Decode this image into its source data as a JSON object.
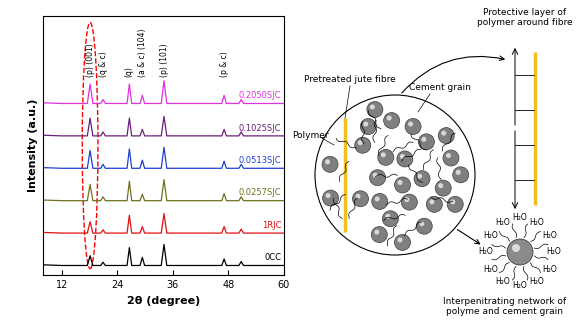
{
  "chart_data": {
    "type": "line",
    "xlabel": "2θ (degree)",
    "ylabel": "Intensity (a.u.)",
    "x": [
      8,
      12,
      16,
      17.5,
      18.1,
      18.7,
      20.4,
      20.9,
      21.4,
      25,
      26.1,
      26.6,
      27.1,
      28.9,
      29.4,
      29.9,
      33.5,
      34.1,
      34.7,
      38,
      46.6,
      47.1,
      47.6,
      50.3,
      50.8,
      51.3,
      55,
      60
    ],
    "xlim": [
      8,
      60
    ],
    "xticks": [
      12,
      24,
      36,
      48,
      60
    ],
    "ylim": [
      0,
      8
    ],
    "yticks": [],
    "tick_labels": "x",
    "series": [
      {
        "name": "0CC",
        "color": "#000000",
        "values": [
          0.32,
          0.3,
          0.3,
          0.3,
          0.6,
          0.3,
          0.3,
          0.4,
          0.3,
          0.3,
          0.3,
          0.85,
          0.3,
          0.3,
          0.55,
          0.3,
          0.3,
          0.95,
          0.3,
          0.3,
          0.3,
          0.5,
          0.3,
          0.3,
          0.42,
          0.3,
          0.3,
          0.3
        ]
      },
      {
        "name": "1RJC",
        "color": "#e01010",
        "values": [
          1.32,
          1.3,
          1.3,
          1.3,
          1.65,
          1.3,
          1.3,
          1.4,
          1.3,
          1.3,
          1.3,
          1.85,
          1.3,
          1.3,
          1.5,
          1.3,
          1.3,
          1.9,
          1.3,
          1.3,
          1.3,
          1.5,
          1.3,
          1.3,
          1.42,
          1.3,
          1.3,
          1.3
        ]
      },
      {
        "name": "0.0257SJC",
        "color": "#707020",
        "values": [
          2.32,
          2.3,
          2.3,
          2.3,
          2.8,
          2.3,
          2.3,
          2.42,
          2.3,
          2.3,
          2.3,
          2.9,
          2.3,
          2.3,
          2.5,
          2.3,
          2.3,
          2.95,
          2.3,
          2.3,
          2.3,
          2.52,
          2.3,
          2.3,
          2.42,
          2.3,
          2.3,
          2.3
        ]
      },
      {
        "name": "0.0513SJC",
        "color": "#1f3fd0",
        "values": [
          3.32,
          3.3,
          3.3,
          3.3,
          3.85,
          3.3,
          3.3,
          3.42,
          3.3,
          3.3,
          3.3,
          3.9,
          3.3,
          3.3,
          3.55,
          3.3,
          3.3,
          3.95,
          3.3,
          3.3,
          3.3,
          3.52,
          3.3,
          3.3,
          3.42,
          3.3,
          3.3,
          3.3
        ]
      },
      {
        "name": "0.1025SJC",
        "color": "#6a1f7a",
        "values": [
          4.32,
          4.3,
          4.3,
          4.3,
          4.85,
          4.3,
          4.3,
          4.42,
          4.3,
          4.3,
          4.3,
          4.85,
          4.3,
          4.3,
          4.5,
          4.3,
          4.3,
          4.9,
          4.3,
          4.3,
          4.3,
          4.5,
          4.3,
          4.3,
          4.42,
          4.3,
          4.3,
          4.3
        ]
      },
      {
        "name": "0.2050SJC",
        "color": "#e030e0",
        "values": [
          5.32,
          5.3,
          5.3,
          5.3,
          5.9,
          5.3,
          5.3,
          5.42,
          5.3,
          5.3,
          5.3,
          5.9,
          5.3,
          5.3,
          5.55,
          5.3,
          5.3,
          6.0,
          5.3,
          5.3,
          5.3,
          5.55,
          5.3,
          5.3,
          5.42,
          5.3,
          5.3,
          5.3
        ]
      }
    ],
    "annotations": [
      {
        "text": "(p) (001)",
        "x": 18.1
      },
      {
        "text": "(q & c)",
        "x": 20.9
      },
      {
        "text": "(q)",
        "x": 26.6
      },
      {
        "text": "(a & c) (104)",
        "x": 29.4
      },
      {
        "text": "(p) (101)",
        "x": 34.1
      },
      {
        "text": "(p & c)",
        "x": 47.1
      }
    ]
  },
  "diagram": {
    "labels": {
      "fibre": "Pretreated jute fibre",
      "polymer": "Polymer",
      "cement": "Cement grain",
      "protective": "Protective layer of polymer around fibre",
      "network": "Interpenitrating network of polyme and cement grain"
    },
    "water": [
      "H₂O",
      "H₂O",
      "H₂O",
      "H₂O",
      "H₂O",
      "H₂O",
      "H₂O",
      "H₂O",
      "H₂O",
      "H₂O",
      "H₂O",
      "H₂O"
    ]
  }
}
